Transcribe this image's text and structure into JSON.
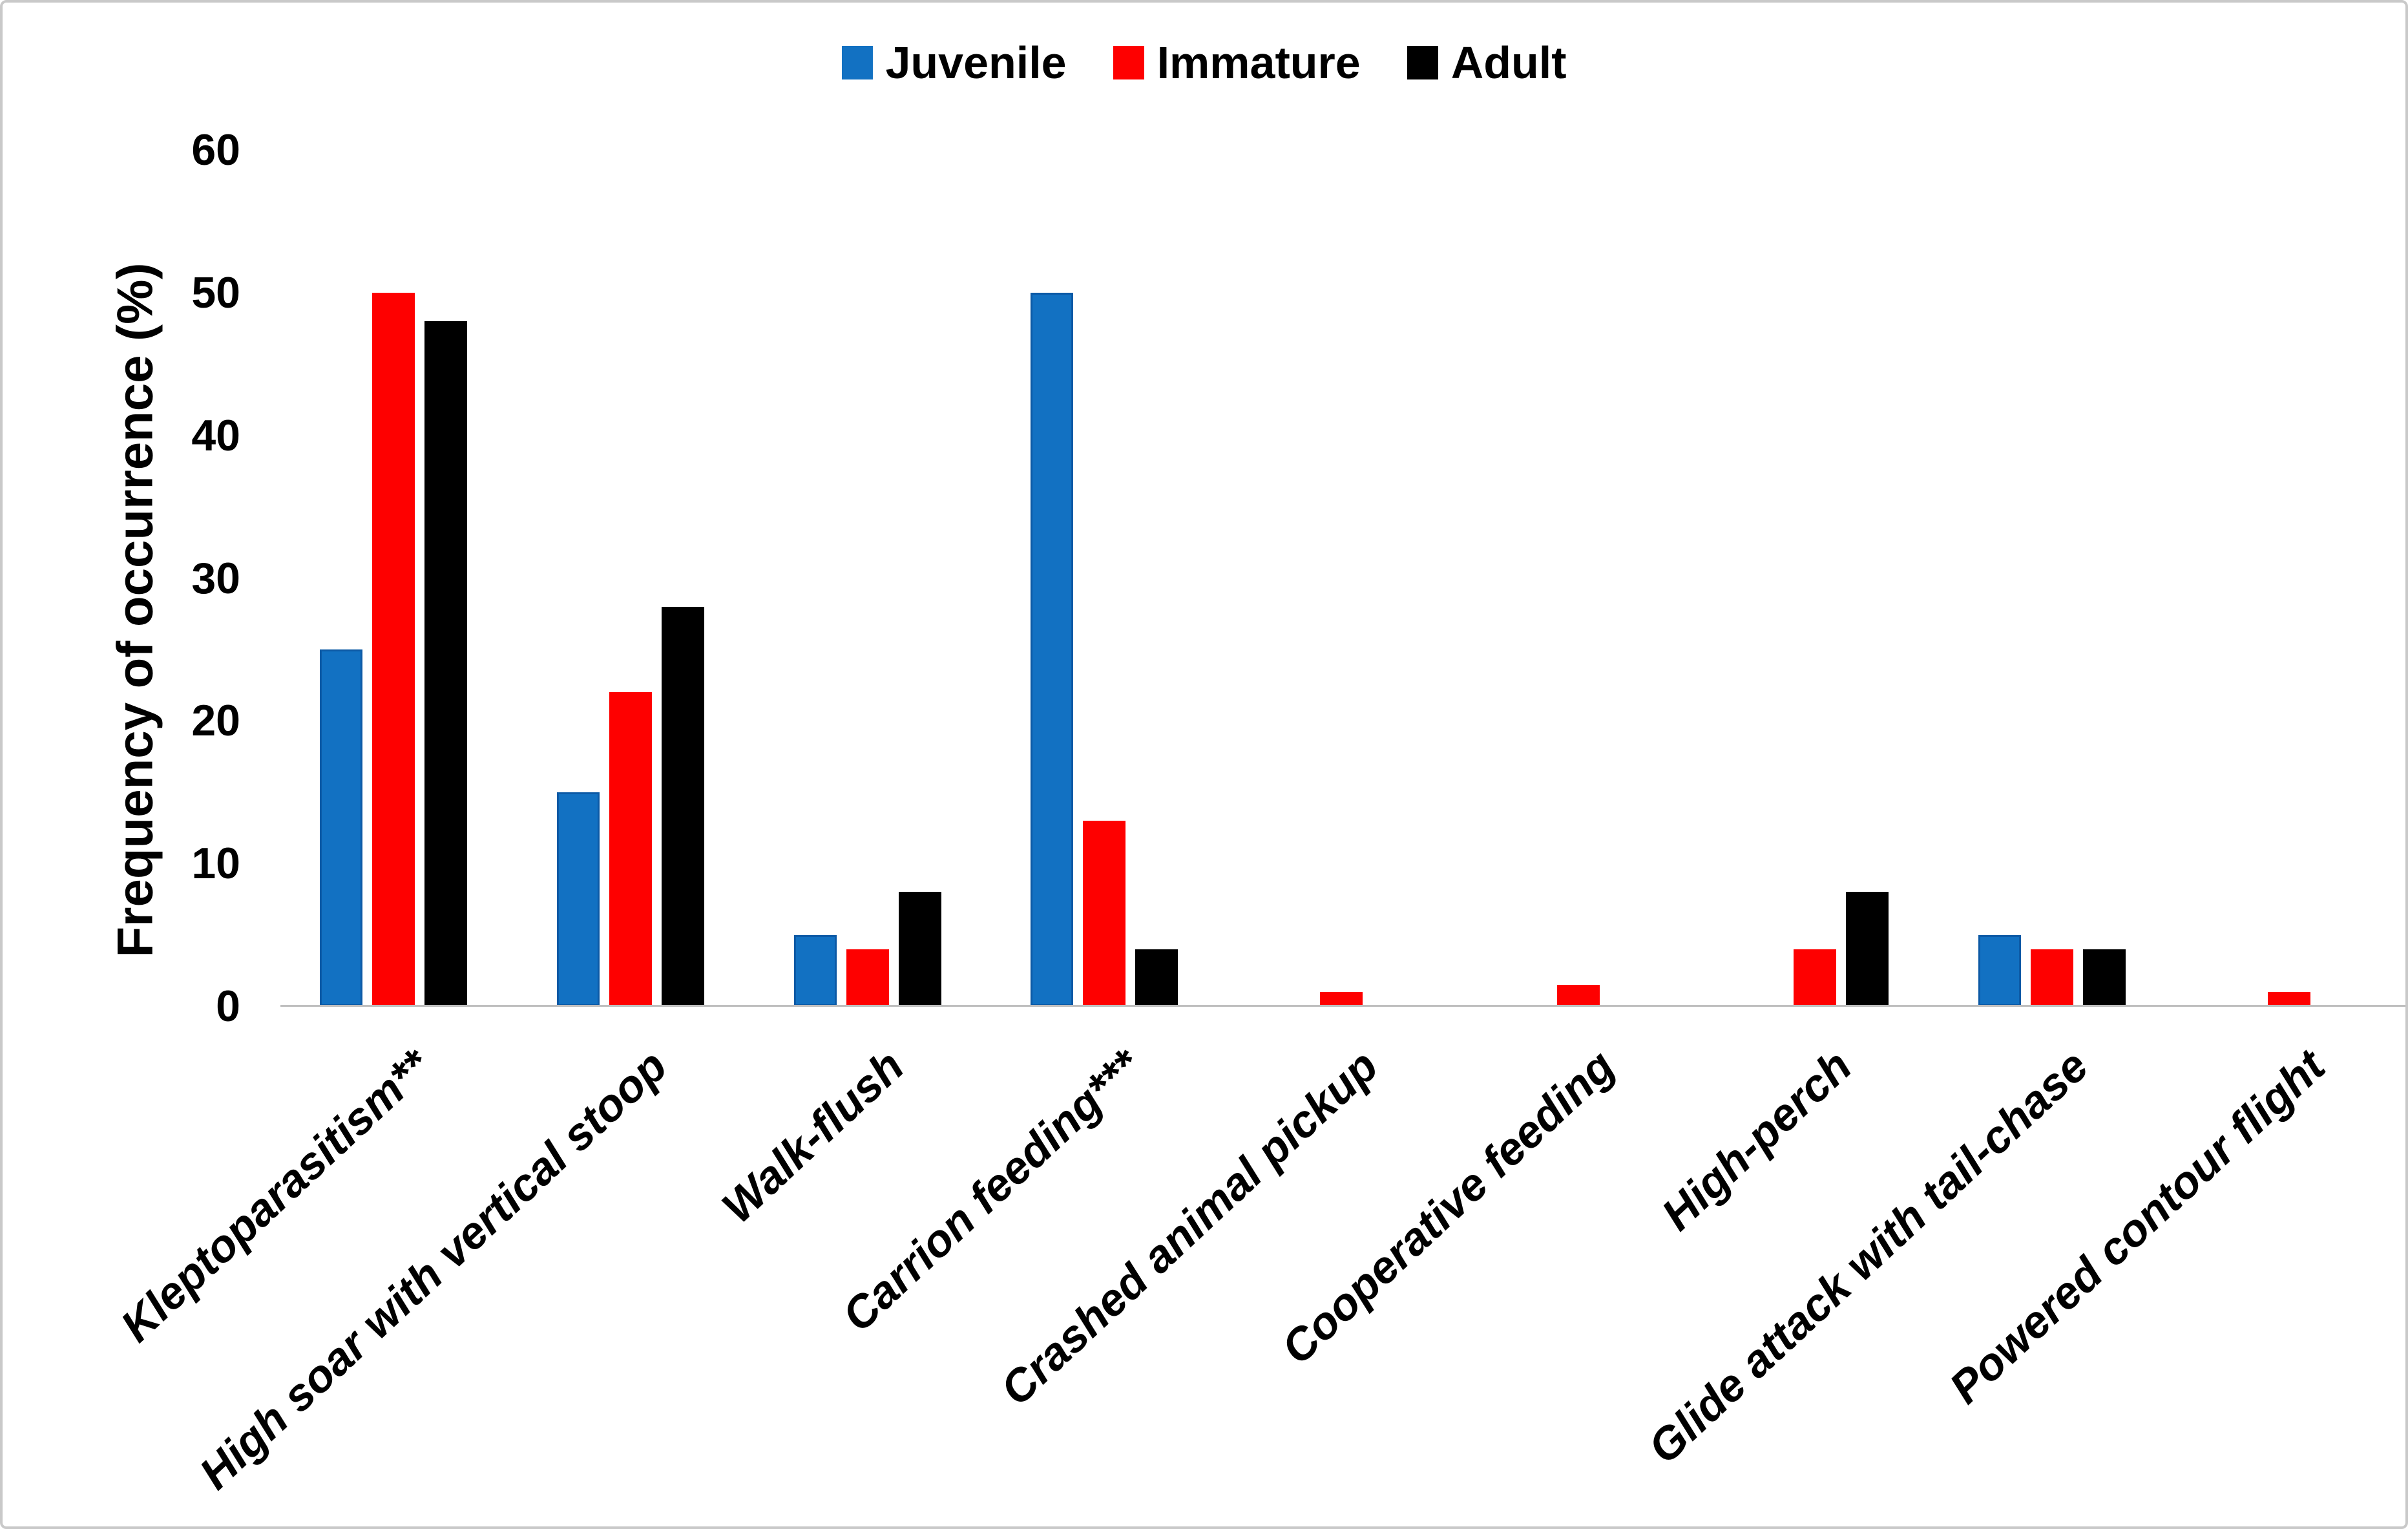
{
  "chart_data": {
    "type": "bar",
    "categories": [
      "Kleptoparasitism**",
      "High soar with vertical stoop",
      "Walk-flush",
      "Carrion feeding***",
      "Crashed animal pickup",
      "Cooperative feeding",
      "High-perch",
      "Glide attack with tail-chase",
      "Powered contour flight"
    ],
    "series": [
      {
        "name": "Juvenile",
        "color": "#1271C2",
        "edge_color": "#0C5AA6",
        "values": [
          25,
          15,
          5,
          50,
          0,
          0,
          0,
          5,
          0
        ]
      },
      {
        "name": "Immature",
        "color": "#FE0000",
        "edge_color": "",
        "values": [
          50,
          22,
          4,
          13,
          1,
          1.5,
          4,
          4,
          1
        ]
      },
      {
        "name": "Adult",
        "color": "#000000",
        "edge_color": "",
        "values": [
          48,
          28,
          8,
          4,
          0,
          0,
          8,
          4,
          0
        ]
      }
    ],
    "title": "",
    "xlabel": "",
    "ylabel": "Frequency of occurrence (%)",
    "yticks": [
      0,
      10,
      20,
      30,
      40,
      50,
      60
    ],
    "ylim": [
      0,
      60
    ],
    "grid": false,
    "legend_position": "top-center",
    "axis_line_color": "#BFBFBF"
  }
}
